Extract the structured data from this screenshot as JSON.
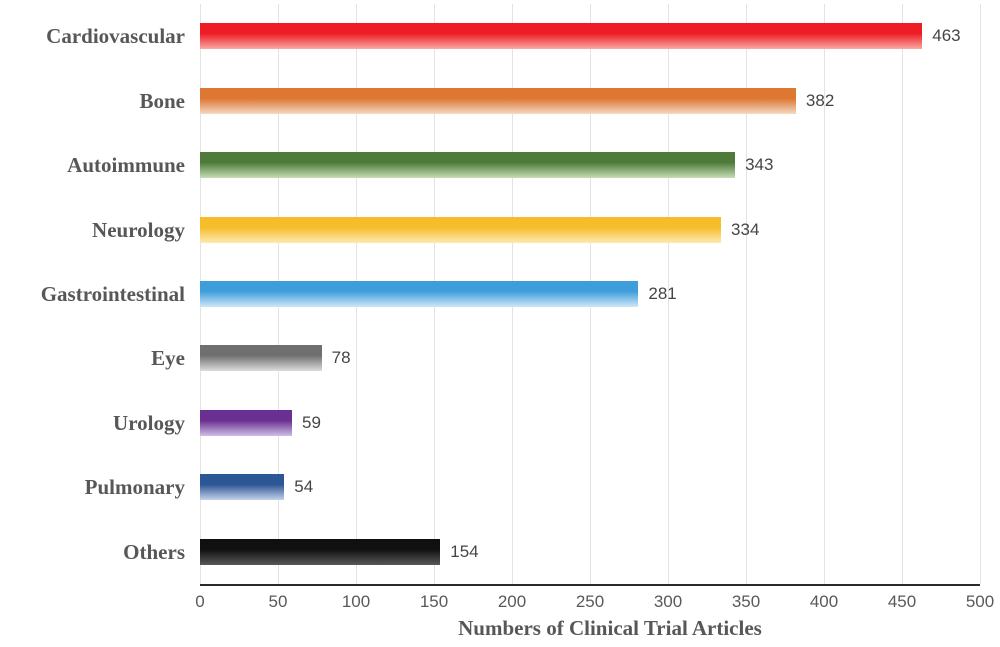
{
  "chart_data": {
    "type": "bar",
    "orientation": "horizontal",
    "title": "",
    "xlabel": "Numbers of Clinical Trial Articles",
    "ylabel": "",
    "xlim": [
      0,
      500
    ],
    "x_ticks": [
      0,
      50,
      100,
      150,
      200,
      250,
      300,
      350,
      400,
      450,
      500
    ],
    "grid": "vertical",
    "legend": "none",
    "categories": [
      "Cardiovascular",
      "Bone",
      "Autoimmune",
      "Neurology",
      "Gastrointestinal",
      "Eye",
      "Urology",
      "Pulmonary",
      "Others"
    ],
    "values": [
      463,
      382,
      343,
      334,
      281,
      78,
      59,
      54,
      154
    ],
    "bars": [
      {
        "label": "Cardiovascular",
        "value": 463,
        "color_top": "#ee1c25",
        "color_bottom": "#faa9a3"
      },
      {
        "label": "Bone",
        "value": 382,
        "color_top": "#dd7732",
        "color_bottom": "#f4d9c2"
      },
      {
        "label": "Autoimmune",
        "value": 343,
        "color_top": "#4e7a3a",
        "color_bottom": "#c6deb5"
      },
      {
        "label": "Neurology",
        "value": 334,
        "color_top": "#f5bd2a",
        "color_bottom": "#fdeab2"
      },
      {
        "label": "Gastrointestinal",
        "value": 281,
        "color_top": "#3e9edb",
        "color_bottom": "#cfe7f7"
      },
      {
        "label": "Eye",
        "value": 78,
        "color_top": "#6f6f6f",
        "color_bottom": "#dcdcdc"
      },
      {
        "label": "Urology",
        "value": 59,
        "color_top": "#6b2e91",
        "color_bottom": "#cdbfe4"
      },
      {
        "label": "Pulmonary",
        "value": 54,
        "color_top": "#2d5694",
        "color_bottom": "#c2d2ea"
      },
      {
        "label": "Others",
        "value": 154,
        "color_top": "#101010",
        "color_bottom": "#585858"
      }
    ]
  },
  "styles": {
    "category_label_color": "#575757",
    "value_label_color": "#454545",
    "tick_label_color": "#595959",
    "gridline_color": "#e3e3e3",
    "axis_line_color": "#2b2b2b",
    "background": "#ffffff"
  }
}
